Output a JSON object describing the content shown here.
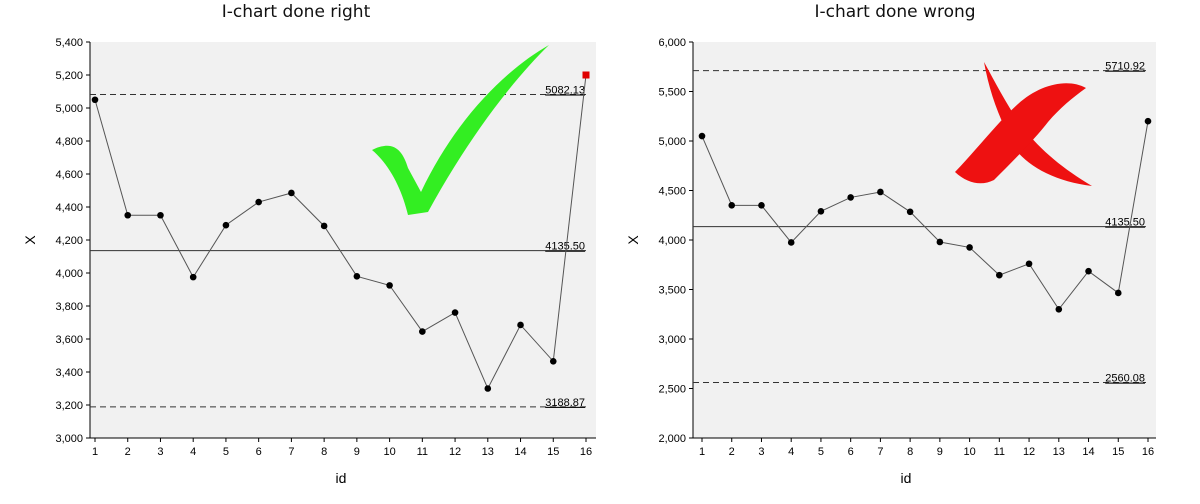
{
  "chart_data": [
    {
      "type": "line",
      "title": "I-chart done right",
      "xlabel": "id",
      "ylabel": "X",
      "x": [
        1,
        2,
        3,
        4,
        5,
        6,
        7,
        8,
        9,
        10,
        11,
        12,
        13,
        14,
        15,
        16
      ],
      "series": [
        {
          "values": [
            5050,
            4350,
            4350,
            3975,
            4290,
            4430,
            4485,
            4285,
            3980,
            3925,
            3645,
            3760,
            3300,
            3685,
            3465,
            5200
          ]
        }
      ],
      "ylim": [
        3000,
        5400
      ],
      "yticks": [
        3000,
        3200,
        3400,
        3600,
        3800,
        4000,
        4200,
        4400,
        4600,
        4800,
        5000,
        5200,
        5400
      ],
      "ytick_labels": [
        "3,000",
        "3,200",
        "3,400",
        "3,600",
        "3,800",
        "4,000",
        "4,200",
        "4,400",
        "4,600",
        "4,800",
        "5,000",
        "5,200",
        "5,400"
      ],
      "reference_lines": [
        {
          "value": 5082.13,
          "label": "5082.13",
          "style": "dashed"
        },
        {
          "value": 4135.5,
          "label": "4135.50",
          "style": "solid"
        },
        {
          "value": 3188.87,
          "label": "3188.87",
          "style": "dashed"
        }
      ],
      "highlighted_points": [
        16
      ],
      "highlight_color": "#e00000",
      "point_color": "#000000",
      "line_color": "#555555",
      "plot_background": "#f1f1f1",
      "annotation": {
        "mark": "checkmark",
        "color": "#33ee22"
      },
      "grid": false
    },
    {
      "type": "line",
      "title": "I-chart done wrong",
      "xlabel": "id",
      "ylabel": "X",
      "x": [
        1,
        2,
        3,
        4,
        5,
        6,
        7,
        8,
        9,
        10,
        11,
        12,
        13,
        14,
        15,
        16
      ],
      "series": [
        {
          "values": [
            5050,
            4350,
            4350,
            3975,
            4290,
            4430,
            4485,
            4285,
            3980,
            3925,
            3645,
            3760,
            3300,
            3685,
            3465,
            5200
          ]
        }
      ],
      "ylim": [
        2000,
        6000
      ],
      "yticks": [
        2000,
        2500,
        3000,
        3500,
        4000,
        4500,
        5000,
        5500,
        6000
      ],
      "ytick_labels": [
        "2,000",
        "2,500",
        "3,000",
        "3,500",
        "4,000",
        "4,500",
        "5,000",
        "5,500",
        "6,000"
      ],
      "reference_lines": [
        {
          "value": 5710.92,
          "label": "5710.92",
          "style": "dashed"
        },
        {
          "value": 4135.5,
          "label": "4135.50",
          "style": "solid"
        },
        {
          "value": 2560.08,
          "label": "2560.08",
          "style": "dashed"
        }
      ],
      "highlighted_points": [],
      "point_color": "#000000",
      "line_color": "#555555",
      "plot_background": "#f1f1f1",
      "annotation": {
        "mark": "cross",
        "color": "#ee1111"
      },
      "grid": false
    }
  ]
}
